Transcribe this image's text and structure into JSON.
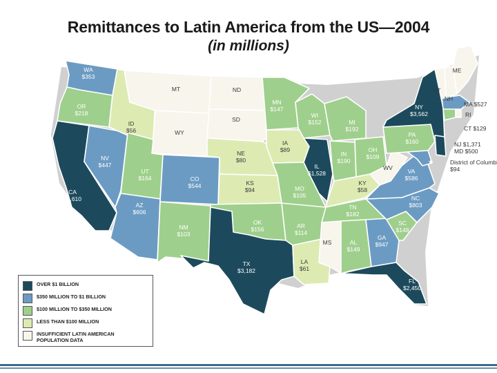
{
  "title": "Remittances to Latin America from the US—2004",
  "subtitle": "(in millions)",
  "colors": {
    "over_1b": "#1c4a5c",
    "350m_1b": "#6b9bc3",
    "100m_350m": "#9fcf8c",
    "under_100m": "#ddebb3",
    "insufficient": "#f7f5ec"
  },
  "legend": [
    {
      "label": "OVER $1 BILLION",
      "color": "#1c4a5c"
    },
    {
      "label": "$350 MILLION TO $1 BILLION",
      "color": "#6b9bc3"
    },
    {
      "label": "$100 MILLION TO $350 MILLION",
      "color": "#9fcf8c"
    },
    {
      "label": "LESS THAN $100 MILLION",
      "color": "#ddebb3"
    },
    {
      "label": "INSUFFICIENT LATIN AMERICAN POPULATION DATA",
      "color": "#f7f5ec"
    }
  ],
  "states": [
    {
      "code": "WA",
      "value": "$353"
    },
    {
      "code": "OR",
      "value": "$218"
    },
    {
      "code": "CA",
      "value": "$9,610"
    },
    {
      "code": "NV",
      "value": "$447"
    },
    {
      "code": "ID",
      "value": "$56"
    },
    {
      "code": "MT",
      "value": ""
    },
    {
      "code": "WY",
      "value": ""
    },
    {
      "code": "UT",
      "value": "$164"
    },
    {
      "code": "AZ",
      "value": "$606"
    },
    {
      "code": "CO",
      "value": "$544"
    },
    {
      "code": "NM",
      "value": "$103"
    },
    {
      "code": "ND",
      "value": ""
    },
    {
      "code": "SD",
      "value": ""
    },
    {
      "code": "NE",
      "value": "$80"
    },
    {
      "code": "KS",
      "value": "$94"
    },
    {
      "code": "OK",
      "value": "$156"
    },
    {
      "code": "TX",
      "value": "$3,182"
    },
    {
      "code": "MN",
      "value": "$147"
    },
    {
      "code": "IA",
      "value": "$89"
    },
    {
      "code": "MO",
      "value": "$105"
    },
    {
      "code": "AR",
      "value": "$114"
    },
    {
      "code": "LA",
      "value": "$61"
    },
    {
      "code": "WI",
      "value": "$152"
    },
    {
      "code": "IL",
      "value": "$1,528"
    },
    {
      "code": "MS",
      "value": ""
    },
    {
      "code": "MI",
      "value": "$192"
    },
    {
      "code": "IN",
      "value": "$190"
    },
    {
      "code": "OH",
      "value": "$109"
    },
    {
      "code": "KY",
      "value": "$58"
    },
    {
      "code": "TN",
      "value": "$182"
    },
    {
      "code": "AL",
      "value": "$149"
    },
    {
      "code": "GA",
      "value": "$947"
    },
    {
      "code": "FL",
      "value": "$2,450"
    },
    {
      "code": "SC",
      "value": "$148"
    },
    {
      "code": "NC",
      "value": "$803"
    },
    {
      "code": "VA",
      "value": "$586"
    },
    {
      "code": "WV",
      "value": ""
    },
    {
      "code": "PA",
      "value": "$160"
    },
    {
      "code": "NY",
      "value": "$3,562"
    },
    {
      "code": "ME",
      "value": ""
    },
    {
      "code": "VT",
      "value": ""
    },
    {
      "code": "NH",
      "value": ""
    }
  ],
  "side_labels": [
    {
      "text": "MA $527"
    },
    {
      "text": "RI"
    },
    {
      "text": "CT $129"
    },
    {
      "text": "NJ $1,371"
    },
    {
      "text": "MD $500"
    },
    {
      "text": "District of Columbia"
    },
    {
      "text": "$94"
    }
  ]
}
